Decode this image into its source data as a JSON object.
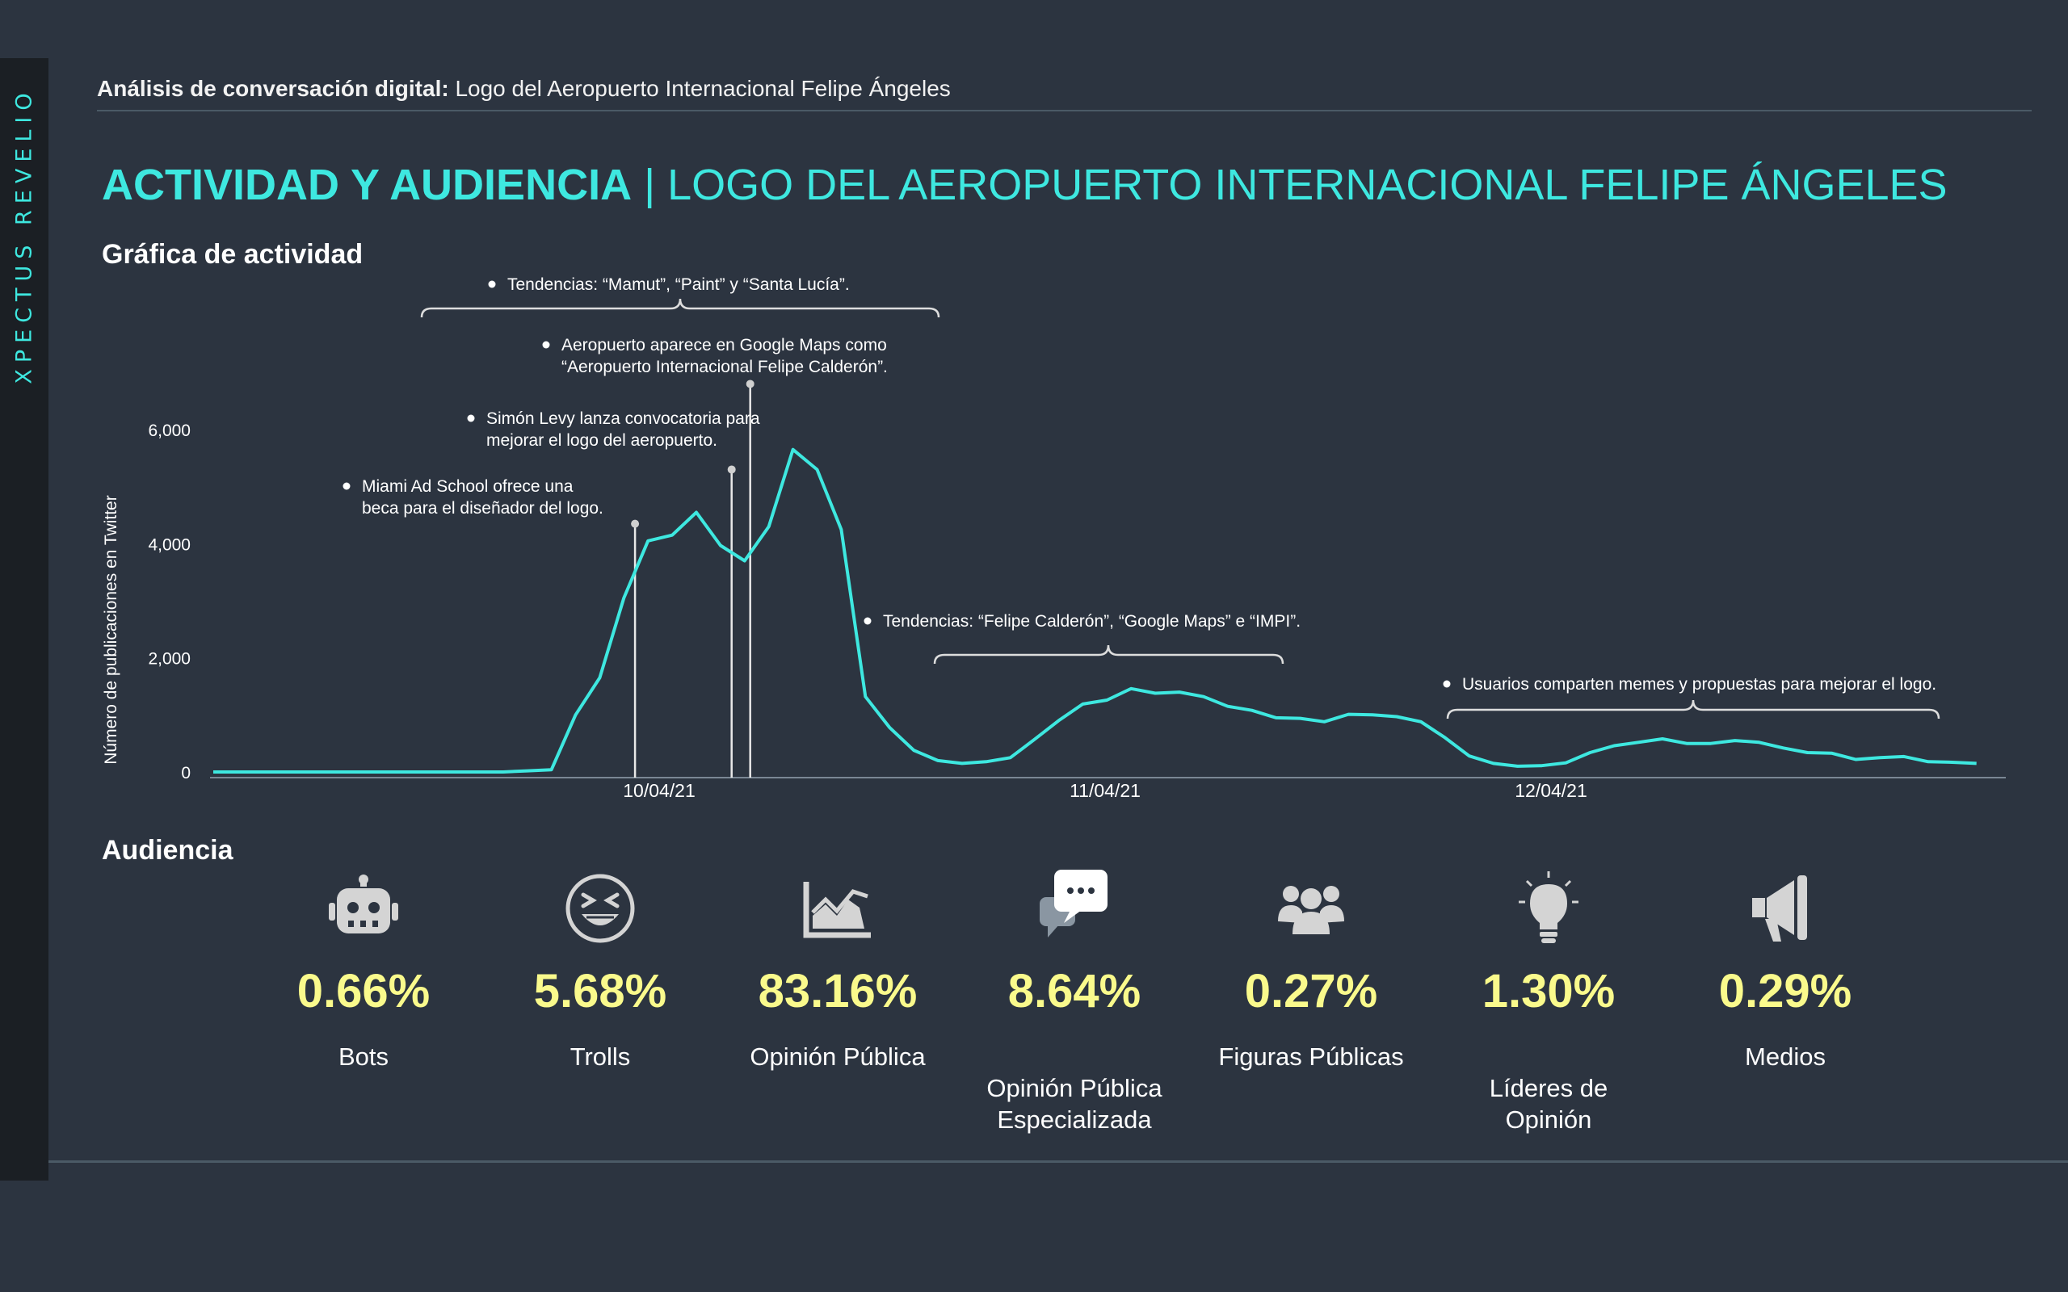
{
  "header": {
    "brand": "XPECTUS REVELIO",
    "top_bold": "Análisis de conversación digital:",
    "top_text": " Logo del Aeropuerto Internacional Felipe Ángeles",
    "title_bold": "ACTIVIDAD Y AUDIENCIA",
    "title_rest": " | LOGO DEL AEROPUERTO INTERNACIONAL FELIPE ÁNGELES"
  },
  "sections": {
    "activity": "Gráfica de actividad",
    "audience": "Audiencia"
  },
  "colors": {
    "accent": "#3ee8e0",
    "background": "#2c3440",
    "sidebar": "#1b1f24",
    "percent": "#fafa8c",
    "icon": "#d4d4d4"
  },
  "chart_data": {
    "type": "line",
    "title": "",
    "xlabel": "",
    "ylabel": "Número de publicaciones en Twitter",
    "ylim": [
      0,
      6000
    ],
    "y_ticks": [
      "6,000",
      "4,000",
      "2,000",
      "0"
    ],
    "x_tick_labels": [
      "10/04/21",
      "11/04/21",
      "12/04/21"
    ],
    "x_tick_positions_hours": [
      24,
      48,
      72
    ],
    "x_range_hours": [
      0,
      96
    ],
    "grid": false,
    "series": [
      {
        "values": [
          0,
          0,
          0,
          0,
          0,
          0,
          0,
          0,
          0,
          0,
          0,
          0,
          0,
          20,
          40,
          1000,
          1650,
          3050,
          4050,
          4150,
          4550,
          3970,
          3700,
          4300,
          5650,
          5300,
          4250,
          1320,
          780,
          380,
          200,
          150,
          180,
          250,
          570,
          900,
          1190,
          1260,
          1460,
          1380,
          1400,
          1320,
          1150,
          1080,
          950,
          940,
          880,
          1010,
          1000,
          970,
          880,
          600,
          280,
          150,
          100,
          110,
          160,
          340,
          460,
          520,
          580,
          500,
          500,
          550,
          520,
          420,
          340,
          330,
          220,
          250,
          270,
          180,
          170,
          150
        ],
        "x_step_hours": 1.3
      }
    ],
    "markers": [
      {
        "x_hours": 22.7,
        "y": 4350
      },
      {
        "x_hours": 27.9,
        "y": 5300
      },
      {
        "x_hours": 28.9,
        "y": 6800
      }
    ],
    "annotations": [
      {
        "text": [
          "Miami Ad School ofrece una",
          "beca para el  diseñador del logo."
        ]
      },
      {
        "text": [
          "Simón Levy lanza convocatoria para",
          "mejorar el logo del aeropuerto."
        ]
      },
      {
        "text": [
          "Aeropuerto aparece en Google Maps como",
          "“Aeropuerto Internacional Felipe Calderón”."
        ]
      },
      {
        "text": [
          "Tendencias: “Mamut”, “Paint” y “Santa Lucía”."
        ]
      },
      {
        "text": [
          "Tendencias: “Felipe Calderón”, “Google Maps” e “IMPI”."
        ]
      },
      {
        "text": [
          "Usuarios comparten memes y propuestas para mejorar  el logo."
        ]
      }
    ]
  },
  "audience": [
    {
      "icon": "robot-icon",
      "value": "0.66%",
      "label": "Bots"
    },
    {
      "icon": "troll-face-icon",
      "value": "5.68%",
      "label": "Trolls"
    },
    {
      "icon": "area-chart-icon",
      "value": "83.16%",
      "label": "Opinión Pública"
    },
    {
      "icon": "speech-bubbles-icon",
      "value": "8.64%",
      "label": "Opinión Pública\nEspecializada"
    },
    {
      "icon": "people-group-icon",
      "value": "0.27%",
      "label": "Figuras Públicas"
    },
    {
      "icon": "lightbulb-icon",
      "value": "1.30%",
      "label": "Líderes de\nOpinión"
    },
    {
      "icon": "megaphone-icon",
      "value": "0.29%",
      "label": "Medios"
    }
  ]
}
